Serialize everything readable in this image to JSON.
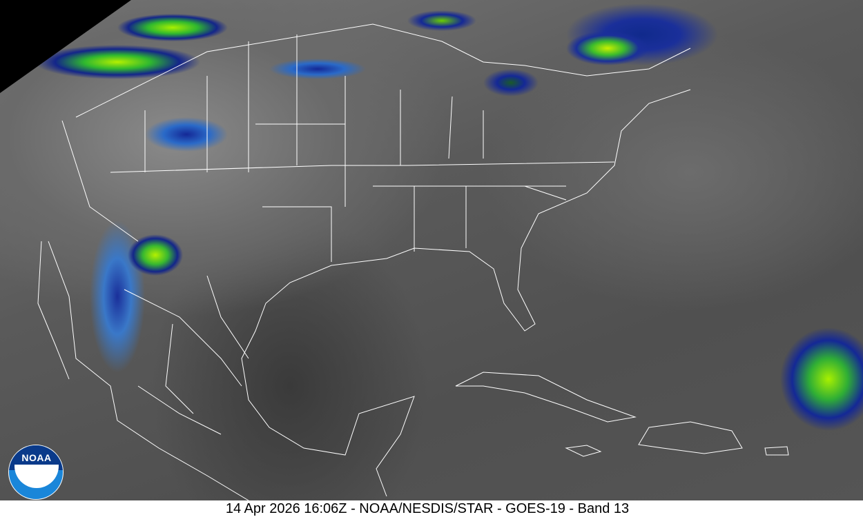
{
  "caption": "14 Apr 2026 16:06Z - NOAA/NESDIS/STAR - GOES-19 - Band 13",
  "logo": {
    "text": "NOAA"
  },
  "colors": {
    "cold_cloud_green": "#a8f000",
    "cloud_blue": "#142896",
    "background_gray": "#555555",
    "boundary_lines": "#ffffff"
  }
}
